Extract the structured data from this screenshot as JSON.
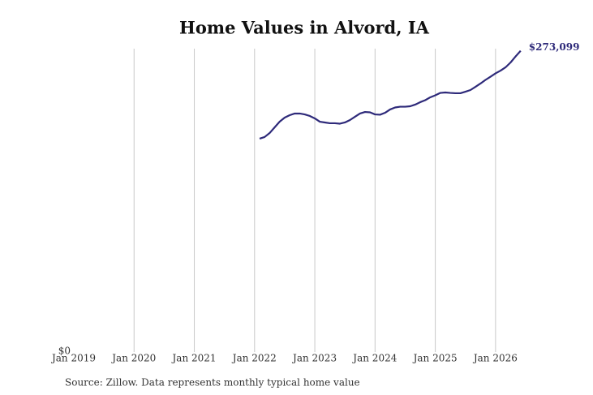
{
  "chart_data": {
    "type": "line",
    "title": "Home Values in Alvord, IA",
    "source": "Source: Zillow. Data represents monthly typical home value",
    "x": [
      "2022-02",
      "2022-03",
      "2022-04",
      "2022-05",
      "2022-06",
      "2022-07",
      "2022-08",
      "2022-09",
      "2022-10",
      "2022-11",
      "2022-12",
      "2023-01",
      "2023-02",
      "2023-03",
      "2023-04",
      "2023-05",
      "2023-06",
      "2023-07",
      "2023-08",
      "2023-09",
      "2023-10",
      "2023-11",
      "2023-12",
      "2024-01",
      "2024-02",
      "2024-03",
      "2024-04",
      "2024-05",
      "2024-06",
      "2024-07",
      "2024-08",
      "2024-09",
      "2024-10",
      "2024-11",
      "2024-12",
      "2025-01",
      "2025-02",
      "2025-03",
      "2025-04",
      "2025-05",
      "2025-06",
      "2025-07",
      "2025-08",
      "2025-09",
      "2025-10",
      "2025-11",
      "2025-12",
      "2026-01",
      "2026-02",
      "2026-03",
      "2026-04",
      "2026-05",
      "2026-06"
    ],
    "values": [
      193400,
      194900,
      198500,
      203700,
      208800,
      212500,
      214700,
      216200,
      216200,
      215400,
      214000,
      211800,
      208800,
      208100,
      207400,
      207400,
      207000,
      208100,
      210300,
      213300,
      216200,
      217600,
      217300,
      215400,
      215100,
      216900,
      219900,
      221700,
      222400,
      222400,
      222800,
      224300,
      226500,
      228300,
      230900,
      232700,
      234900,
      235300,
      234900,
      234600,
      234600,
      236000,
      237500,
      240400,
      243400,
      246700,
      249600,
      252600,
      255100,
      258100,
      262500,
      268000,
      273099
    ],
    "value_labels": [
      null,
      null,
      null,
      null,
      null,
      null,
      null,
      null,
      null,
      null,
      null,
      null,
      null,
      null,
      null,
      null,
      null,
      null,
      null,
      null,
      null,
      null,
      null,
      null,
      null,
      null,
      null,
      null,
      null,
      null,
      null,
      null,
      null,
      null,
      null,
      null,
      null,
      null,
      null,
      null,
      null,
      null,
      null,
      null,
      null,
      null,
      null,
      null,
      null,
      null,
      null,
      null,
      "$273,099"
    ],
    "color": "#2e2a7a",
    "xlim": [
      "2019-01",
      "2026-07"
    ],
    "xticks": [
      {
        "value": "2019-01",
        "label": "Jan 2019"
      },
      {
        "value": "2020-01",
        "label": "Jan 2020"
      },
      {
        "value": "2021-01",
        "label": "Jan 2021"
      },
      {
        "value": "2022-01",
        "label": "Jan 2022"
      },
      {
        "value": "2023-01",
        "label": "Jan 2023"
      },
      {
        "value": "2024-01",
        "label": "Jan 2024"
      },
      {
        "value": "2025-01",
        "label": "Jan 2025"
      },
      {
        "value": "2026-01",
        "label": "Jan 2026"
      }
    ],
    "ylim": [
      0,
      275000
    ],
    "yticks": [
      {
        "value": 0,
        "label": "$0"
      }
    ],
    "grid": true
  }
}
